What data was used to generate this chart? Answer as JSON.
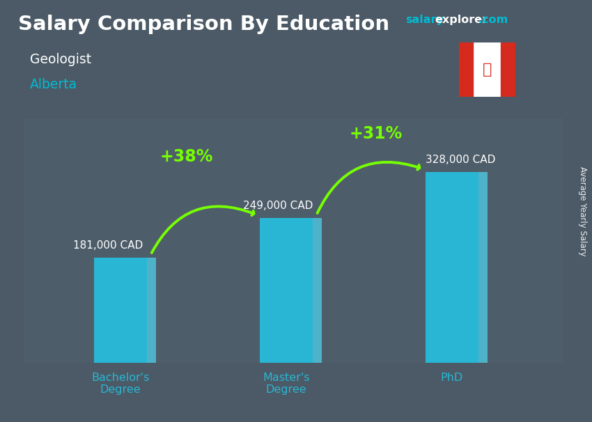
{
  "title": "Salary Comparison By Education",
  "subtitle": "Geologist",
  "location": "Alberta",
  "watermark_salary": "salary",
  "watermark_explorer": "explorer",
  "watermark_com": ".com",
  "ylabel": "Average Yearly Salary",
  "categories": [
    "Bachelor's\nDegree",
    "Master's\nDegree",
    "PhD"
  ],
  "values": [
    181000,
    249000,
    328000
  ],
  "value_labels": [
    "181,000 CAD",
    "249,000 CAD",
    "328,000 CAD"
  ],
  "bar_color_main": "#29b6d4",
  "bar_color_left": "#0097b2",
  "bar_color_right": "#4fc3d9",
  "bar_color_top": "#7ed8ea",
  "pct_changes": [
    "+38%",
    "+31%"
  ],
  "pct_arrow_color": "#76ff03",
  "bg_color": "#546370",
  "title_color": "#ffffff",
  "subtitle_color": "#ffffff",
  "location_color": "#00bcd4",
  "value_label_color": "#ffffff",
  "category_label_color": "#29b6d4",
  "watermark_color1": "#00bcd4",
  "watermark_color2": "#ffffff",
  "bar_width": 0.38,
  "x_positions": [
    1.0,
    2.2,
    3.4
  ],
  "xlim": [
    0.3,
    4.2
  ],
  "ylim": [
    0,
    420000
  ],
  "flag_red": "#d52b1e",
  "flag_white": "#ffffff"
}
